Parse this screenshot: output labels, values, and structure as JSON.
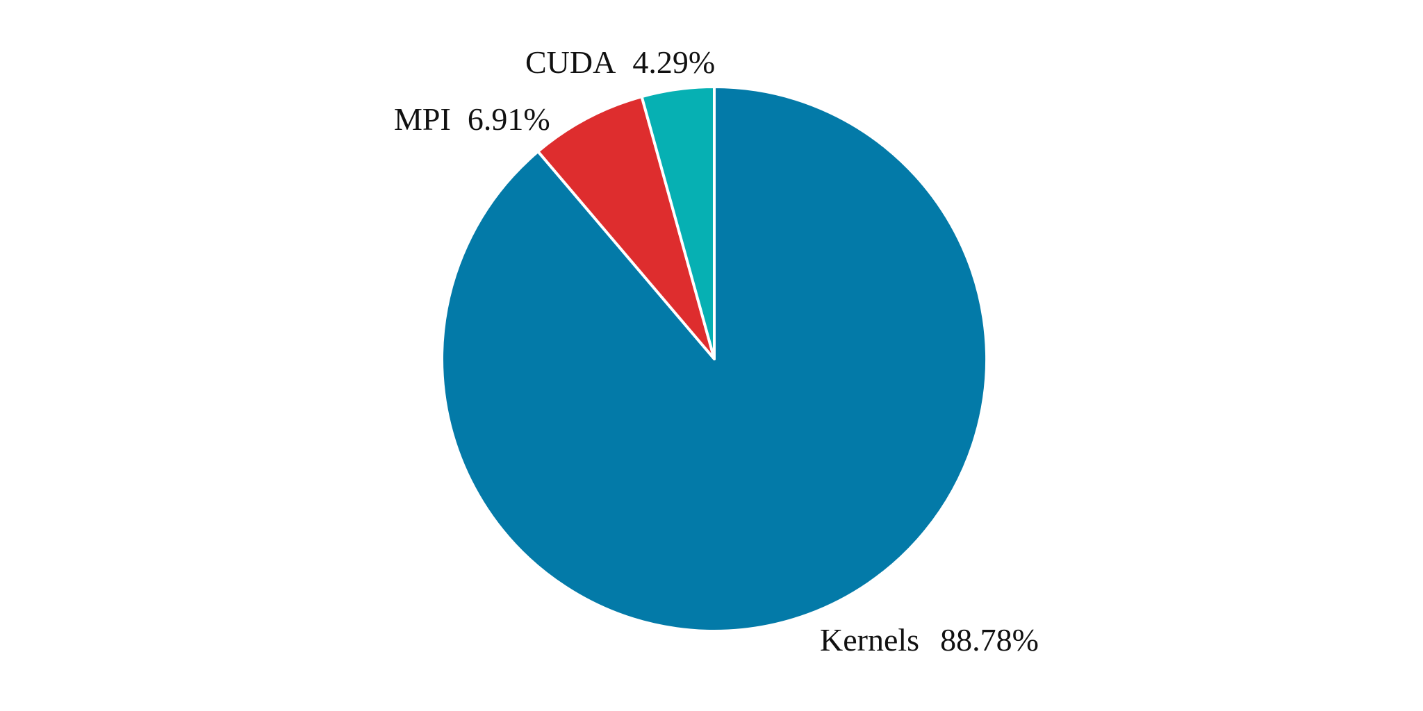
{
  "chart_data": {
    "type": "pie",
    "title": "",
    "start_angle_deg": 0,
    "direction": "clockwise",
    "slices": [
      {
        "label": "Kernels",
        "value": 88.78,
        "value_text": "88.78%",
        "color": "#037AA8"
      },
      {
        "label": "MPI",
        "value": 6.91,
        "value_text": "6.91%",
        "color": "#DE2D2E"
      },
      {
        "label": "CUDA",
        "value": 4.29,
        "value_text": "4.29%",
        "color": "#06B0B3"
      }
    ],
    "slice_border_color": "#ffffff",
    "legend": "none",
    "grid": false
  }
}
